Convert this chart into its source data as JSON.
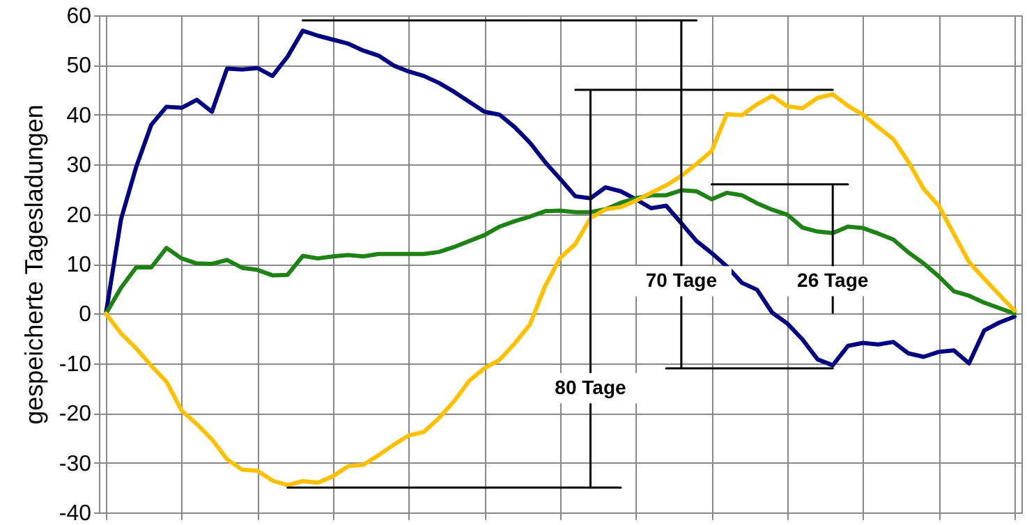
{
  "chart_data": {
    "type": "line",
    "ylabel": "gespeicherte Tagesladungen",
    "categories": [
      null,
      null,
      null,
      null,
      null,
      null,
      null,
      null,
      null,
      null,
      null,
      null,
      null,
      null,
      null,
      null,
      null,
      null,
      null,
      null,
      null,
      null,
      null,
      null,
      null,
      null,
      null,
      null,
      null,
      null,
      null,
      null,
      null,
      null,
      null,
      null,
      null,
      null,
      null,
      null,
      null,
      null,
      null,
      null,
      null,
      null,
      null,
      null,
      null,
      null,
      null,
      null,
      null,
      null,
      null,
      null,
      null,
      null,
      null,
      null,
      null
    ],
    "ylim": [
      -40,
      60
    ],
    "yticks": [
      -40,
      -30,
      -20,
      -10,
      0,
      10,
      20,
      30,
      40,
      50,
      60
    ],
    "grid": true,
    "line_style": "solid",
    "series": [
      {
        "color": "#000080",
        "values": [
          0,
          19,
          29.5,
          38,
          41.6,
          41.4,
          43,
          40.6,
          49.3,
          49.1,
          49.4,
          47.8,
          51.7,
          56.9,
          55.9,
          55.1,
          54.3,
          52.9,
          51.9,
          49.9,
          48.7,
          47.8,
          46.4,
          44.6,
          42.6,
          40.6,
          40,
          37.5,
          34.4,
          30.5,
          27.1,
          23.6,
          23.2,
          25.4,
          24.6,
          23,
          21.2,
          21.7,
          18.2,
          14.6,
          12.2,
          9.5,
          6.2,
          4.8,
          0.2,
          -2,
          -5.2,
          -9.2,
          -10.4,
          -6.5,
          -5.9,
          -6.2,
          -5.7,
          -8,
          -8.7,
          -7.7,
          -7.4,
          -10,
          -3.4,
          -1.8,
          -0.6
        ]
      },
      {
        "color": "#1e8214",
        "values": [
          0,
          5.2,
          9.3,
          9.3,
          13.2,
          11.1,
          10.1,
          10,
          10.8,
          9.2,
          8.8,
          7.7,
          7.8,
          11.6,
          11.1,
          11.5,
          11.8,
          11.5,
          12,
          12,
          12,
          12,
          12.4,
          13.4,
          14.6,
          15.8,
          17.5,
          18.6,
          19.5,
          20.6,
          20.7,
          20.4,
          20.4,
          21,
          22.3,
          23.2,
          23.8,
          23.8,
          24.8,
          24.6,
          23,
          24.3,
          23.8,
          22.2,
          20.9,
          19.9,
          17.3,
          16.5,
          16.2,
          17.5,
          17.2,
          16.1,
          14.9,
          12.3,
          10.1,
          7.5,
          4.5,
          3.6,
          2.2,
          1.1,
          0
        ]
      },
      {
        "color": "#ffc000",
        "values": [
          0,
          -4,
          -7,
          -10.5,
          -13.7,
          -19.5,
          -22.2,
          -25.3,
          -29.3,
          -31.4,
          -31.6,
          -33.6,
          -34.5,
          -33.7,
          -34,
          -32.7,
          -30.7,
          -30.4,
          -28.5,
          -26.4,
          -24.5,
          -23.8,
          -21,
          -17.6,
          -13.5,
          -11,
          -9.3,
          -6,
          -2.2,
          5.5,
          11.2,
          14,
          19.2,
          21,
          21.4,
          22.7,
          24.3,
          25.8,
          27.7,
          30.1,
          32.7,
          40.1,
          39.9,
          42.1,
          43.8,
          41.7,
          41.3,
          43.4,
          44.1,
          41.8,
          40,
          37.5,
          35.1,
          30.5,
          25.1,
          21.7,
          16,
          10.4,
          7,
          3.8,
          0.6
        ]
      },
      {
        "color": "#000000",
        "values": [
          null,
          null,
          null,
          null,
          null,
          null,
          null,
          null,
          null,
          null,
          null,
          null,
          null,
          59,
          59,
          59,
          59,
          59,
          59,
          59,
          59,
          59,
          59,
          59,
          59,
          59,
          59,
          59,
          59,
          59,
          59,
          59,
          59,
          59,
          59,
          59,
          59,
          59,
          59,
          59,
          null,
          null,
          null,
          null,
          null,
          null,
          null,
          null,
          null,
          null,
          null,
          null,
          null,
          null,
          null,
          null,
          null,
          null,
          null,
          null,
          null
        ]
      },
      {
        "color": "#000000",
        "values": [
          null,
          null,
          null,
          null,
          null,
          null,
          null,
          null,
          null,
          null,
          null,
          null,
          null,
          null,
          null,
          null,
          null,
          null,
          null,
          null,
          null,
          null,
          null,
          null,
          null,
          null,
          null,
          null,
          null,
          null,
          null,
          45,
          45,
          45,
          45,
          45,
          45,
          45,
          45,
          45,
          45,
          45,
          45,
          45,
          45,
          45,
          45,
          45,
          45,
          null,
          null,
          null,
          null,
          null,
          null,
          null,
          null,
          null,
          null,
          null,
          null
        ]
      },
      {
        "color": "#000000",
        "values": [
          null,
          null,
          null,
          null,
          null,
          null,
          null,
          null,
          null,
          null,
          null,
          null,
          null,
          null,
          null,
          null,
          null,
          null,
          null,
          null,
          null,
          null,
          null,
          null,
          null,
          null,
          null,
          null,
          null,
          null,
          null,
          null,
          null,
          null,
          null,
          null,
          null,
          null,
          null,
          null,
          26,
          26,
          26,
          26,
          26,
          26,
          26,
          26,
          26,
          26,
          null,
          null,
          null,
          null,
          null,
          null,
          null,
          null,
          null,
          null,
          null
        ]
      },
      {
        "color": "#000000",
        "values": [
          null,
          null,
          null,
          null,
          null,
          null,
          null,
          null,
          null,
          null,
          null,
          null,
          null,
          null,
          null,
          null,
          null,
          null,
          null,
          null,
          null,
          null,
          null,
          null,
          null,
          null,
          null,
          null,
          null,
          null,
          null,
          null,
          null,
          null,
          null,
          null,
          null,
          -11,
          -11,
          -11,
          -11,
          -11,
          -11,
          -11,
          -11,
          -11,
          -11,
          -11,
          -11,
          null,
          null,
          null,
          null,
          null,
          null,
          null,
          null,
          null,
          null,
          null,
          null
        ]
      },
      {
        "color": "#000000",
        "values": [
          null,
          null,
          null,
          null,
          null,
          null,
          null,
          null,
          null,
          null,
          null,
          null,
          -35,
          -35,
          -35,
          -35,
          -35,
          -35,
          -35,
          -35,
          -35,
          -35,
          -35,
          -35,
          -35,
          -35,
          -35,
          -35,
          -35,
          -35,
          -35,
          -35,
          -35,
          -35,
          -35,
          null,
          null,
          null,
          null,
          null,
          null,
          null,
          null,
          null,
          null,
          null,
          null,
          null,
          null,
          null,
          null,
          null,
          null,
          null,
          null,
          null,
          null,
          null,
          null,
          null,
          null
        ]
      },
      {
        "type": "bar",
        "color": "#000000",
        "values": [
          null,
          null,
          null,
          null,
          null,
          null,
          null,
          null,
          null,
          null,
          null,
          null,
          null,
          null,
          null,
          null,
          null,
          null,
          null,
          null,
          null,
          null,
          null,
          null,
          null,
          null,
          null,
          null,
          null,
          null,
          null,
          null,
          80,
          null,
          null,
          null,
          null,
          null,
          70,
          null,
          null,
          null,
          null,
          null,
          null,
          null,
          null,
          null,
          26,
          null,
          null,
          null,
          null,
          null,
          null,
          null,
          null,
          null,
          null,
          null,
          null
        ],
        "base": [
          null,
          null,
          null,
          null,
          null,
          null,
          null,
          null,
          null,
          null,
          null,
          null,
          null,
          null,
          null,
          null,
          null,
          null,
          null,
          null,
          null,
          null,
          null,
          null,
          null,
          null,
          null,
          null,
          null,
          null,
          null,
          null,
          -35,
          null,
          null,
          null,
          null,
          null,
          -11,
          null,
          null,
          null,
          null,
          null,
          null,
          null,
          null,
          null,
          0,
          null,
          null,
          null,
          null,
          null,
          null,
          null,
          null,
          null,
          null,
          null,
          null
        ],
        "value_labels": [
          null,
          null,
          null,
          null,
          null,
          null,
          null,
          null,
          null,
          null,
          null,
          null,
          null,
          null,
          null,
          null,
          null,
          null,
          null,
          null,
          null,
          null,
          null,
          null,
          null,
          null,
          null,
          null,
          null,
          null,
          null,
          null,
          "80 Tage",
          null,
          null,
          null,
          null,
          null,
          "70 Tage",
          null,
          null,
          null,
          null,
          null,
          null,
          null,
          null,
          null,
          "26 Tage",
          null,
          null,
          null,
          null,
          null,
          null,
          null,
          null,
          null,
          null,
          null,
          null
        ]
      }
    ]
  }
}
